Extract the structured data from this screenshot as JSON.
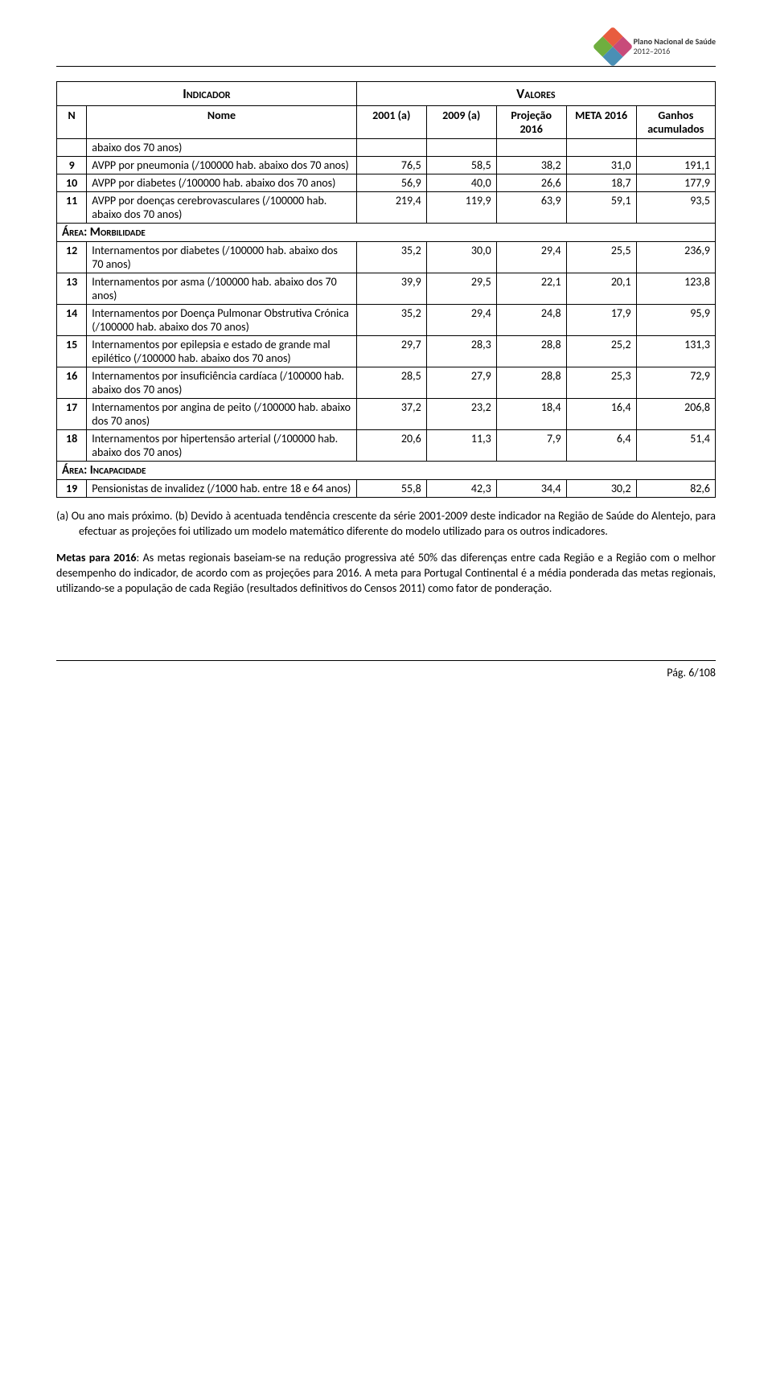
{
  "header": {
    "logo_colors": [
      "#e85c3f",
      "#c84b7a",
      "#6fae3f",
      "#4a8fb5"
    ],
    "logo_line1": "Plano Nacional de Saúde",
    "logo_line2": "2012–2016"
  },
  "table": {
    "head": {
      "indicador": "Indicador",
      "valores": "Valores",
      "n": "N",
      "nome": "Nome",
      "c2001": "2001 (a)",
      "c2009": "2009 (a)",
      "proj": "Projeção 2016",
      "meta": "META 2016",
      "ganhos": "Ganhos acumulados"
    },
    "rows": [
      {
        "n": "",
        "name": "abaixo dos 70 anos)",
        "v": [
          "",
          "",
          "",
          "",
          ""
        ]
      },
      {
        "n": "9",
        "name": "AVPP por pneumonia (/100000 hab. abaixo dos 70 anos)",
        "v": [
          "76,5",
          "58,5",
          "38,2",
          "31,0",
          "191,1"
        ]
      },
      {
        "n": "10",
        "name": "AVPP por diabetes (/100000 hab. abaixo dos 70 anos)",
        "v": [
          "56,9",
          "40,0",
          "26,6",
          "18,7",
          "177,9"
        ]
      },
      {
        "n": "11",
        "name": "AVPP por doenças cerebrovasculares (/100000 hab. abaixo dos 70 anos)",
        "v": [
          "219,4",
          "119,9",
          "63,9",
          "59,1",
          "93,5"
        ]
      }
    ],
    "area1": "Área: Morbilidade",
    "rows2": [
      {
        "n": "12",
        "name": "Internamentos por diabetes (/100000 hab. abaixo dos 70 anos)",
        "v": [
          "35,2",
          "30,0",
          "29,4",
          "25,5",
          "236,9"
        ]
      },
      {
        "n": "13",
        "name": "Internamentos por asma (/100000 hab. abaixo dos 70 anos)",
        "v": [
          "39,9",
          "29,5",
          "22,1",
          "20,1",
          "123,8"
        ]
      },
      {
        "n": "14",
        "name": "Internamentos por Doença Pulmonar Obstrutiva Crónica (/100000 hab. abaixo dos 70 anos)",
        "v": [
          "35,2",
          "29,4",
          "24,8",
          "17,9",
          "95,9"
        ]
      },
      {
        "n": "15",
        "name": "Internamentos por epilepsia e estado de grande mal epilético (/100000 hab. abaixo dos 70 anos)",
        "v": [
          "29,7",
          "28,3",
          "28,8",
          "25,2",
          "131,3"
        ]
      },
      {
        "n": "16",
        "name": "Internamentos por insuficiência cardíaca (/100000 hab. abaixo dos 70 anos)",
        "v": [
          "28,5",
          "27,9",
          "28,8",
          "25,3",
          "72,9"
        ]
      },
      {
        "n": "17",
        "name": "Internamentos por angina de peito (/100000 hab. abaixo dos 70 anos)",
        "v": [
          "37,2",
          "23,2",
          "18,4",
          "16,4",
          "206,8"
        ]
      },
      {
        "n": "18",
        "name": "Internamentos por hipertensão arterial (/100000 hab. abaixo dos 70 anos)",
        "v": [
          "20,6",
          "11,3",
          "7,9",
          "6,4",
          "51,4"
        ]
      }
    ],
    "area2": "Área: Incapacidade",
    "rows3": [
      {
        "n": "19",
        "name": "Pensionistas de invalidez (/1000 hab. entre 18 e 64 anos)",
        "v": [
          "55,8",
          "42,3",
          "34,4",
          "30,2",
          "82,6"
        ]
      }
    ]
  },
  "footnote_a": "(a)  Ou ano mais próximo. (b) Devido à acentuada tendência crescente da série 2001-2009 deste indicador na Região de Saúde do Alentejo, para efectuar as projeções foi utilizado um modelo matemático diferente do modelo utilizado para os outros indicadores.",
  "metas_label": "Metas para 2016",
  "metas_text": ": As metas regionais baseiam-se na redução progressiva até 50% das diferenças entre cada Região e a Região com o melhor desempenho do indicador, de acordo com as projeções para 2016. A meta para Portugal Continental é a média ponderada das metas regionais, utilizando-se a população de cada Região (resultados definitivos do Censos 2011) como fator de ponderação.",
  "page": "Pág. 6/108"
}
